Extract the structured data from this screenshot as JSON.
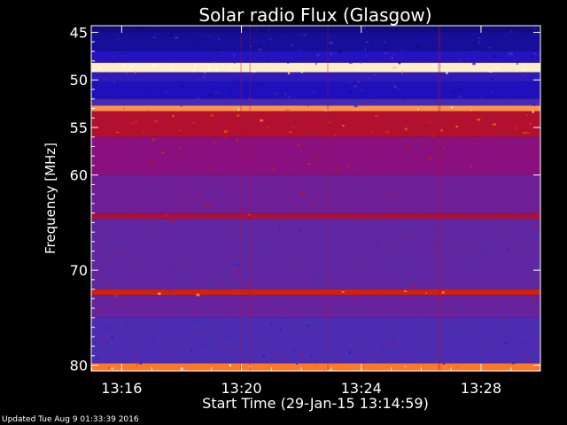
{
  "chart_data": {
    "type": "heatmap",
    "title": "Solar radio Flux (Glasgow)",
    "xlabel": "Start Time (29-Jan-15 13:14:59)",
    "ylabel": "Frequency [MHz]",
    "x_ticks": [
      "13:16",
      "13:20",
      "13:24",
      "13:28"
    ],
    "x_tick_minutes": [
      1.0167,
      5.0167,
      9.0167,
      13.0167
    ],
    "x_range_minutes": [
      0,
      15
    ],
    "y_ticks": [
      45,
      50,
      55,
      60,
      70,
      80
    ],
    "y_range": [
      44.3,
      80.6
    ],
    "colormap": [
      "#0a0a60",
      "#2010c0",
      "#5030b0",
      "#8a1080",
      "#c01010",
      "#ff6a10",
      "#ffffe0"
    ],
    "bands": [
      {
        "f_from": 44.3,
        "f_to": 45.0,
        "level": 0.05
      },
      {
        "f_from": 45.0,
        "f_to": 47.0,
        "level": 0.1
      },
      {
        "f_from": 47.0,
        "f_to": 48.2,
        "level": 0.18
      },
      {
        "f_from": 48.2,
        "f_to": 49.2,
        "level": 0.98
      },
      {
        "f_from": 49.2,
        "f_to": 50.2,
        "level": 0.22
      },
      {
        "f_from": 50.2,
        "f_to": 52.0,
        "level": 0.16
      },
      {
        "f_from": 52.0,
        "f_to": 52.7,
        "level": 0.3
      },
      {
        "f_from": 52.7,
        "f_to": 53.3,
        "level": 0.88
      },
      {
        "f_from": 53.3,
        "f_to": 56.0,
        "level": 0.62
      },
      {
        "f_from": 56.0,
        "f_to": 60.0,
        "level": 0.5
      },
      {
        "f_from": 60.0,
        "f_to": 64.0,
        "level": 0.42
      },
      {
        "f_from": 64.0,
        "f_to": 64.6,
        "level": 0.6
      },
      {
        "f_from": 64.6,
        "f_to": 72.0,
        "level": 0.38
      },
      {
        "f_from": 72.0,
        "f_to": 72.6,
        "level": 0.7
      },
      {
        "f_from": 72.6,
        "f_to": 75.0,
        "level": 0.4
      },
      {
        "f_from": 75.0,
        "f_to": 79.8,
        "level": 0.32
      },
      {
        "f_from": 79.8,
        "f_to": 80.6,
        "level": 0.85
      }
    ]
  },
  "footer": {
    "updated": "Updated Tue Aug  9 01:33:39 2016"
  }
}
